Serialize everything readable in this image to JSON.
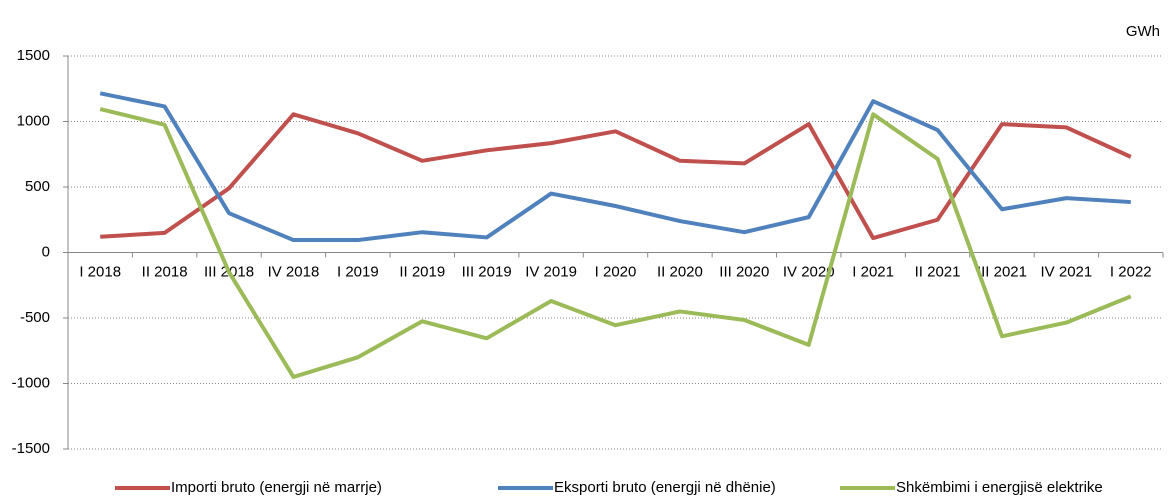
{
  "chart_data": {
    "type": "line",
    "unit": "GWh",
    "categories": [
      "I 2018",
      "II 2018",
      "III 2018",
      "IV 2018",
      "I 2019",
      "II 2019",
      "III 2019",
      "IV 2019",
      "I 2020",
      "II 2020",
      "III 2020",
      "IV 2020",
      "I 2021",
      "II 2021",
      "III 2021",
      "IV 2021",
      "I 2022"
    ],
    "series": [
      {
        "name": "Importi bruto (energji në marrje)",
        "color": "#c0504d",
        "values": [
          120,
          150,
          490,
          1055,
          910,
          700,
          780,
          835,
          925,
          700,
          680,
          980,
          110,
          250,
          980,
          955,
          730
        ]
      },
      {
        "name": "Eksporti bruto (energji në dhënie)",
        "color": "#4f81bd",
        "values": [
          1215,
          1115,
          300,
          95,
          95,
          155,
          115,
          450,
          355,
          240,
          155,
          270,
          1155,
          935,
          330,
          415,
          385
        ]
      },
      {
        "name": "Shkëmbimi i energjisë elektrike",
        "color": "#9bbb59",
        "values": [
          1095,
          975,
          -150,
          -950,
          -800,
          -525,
          -655,
          -370,
          -555,
          -450,
          -515,
          -705,
          1055,
          715,
          -640,
          -535,
          -335
        ]
      }
    ],
    "ylim": [
      -1500,
      1500
    ],
    "yticks": [
      -1500,
      -1000,
      -500,
      0,
      500,
      1000,
      1500
    ],
    "grid": true
  }
}
